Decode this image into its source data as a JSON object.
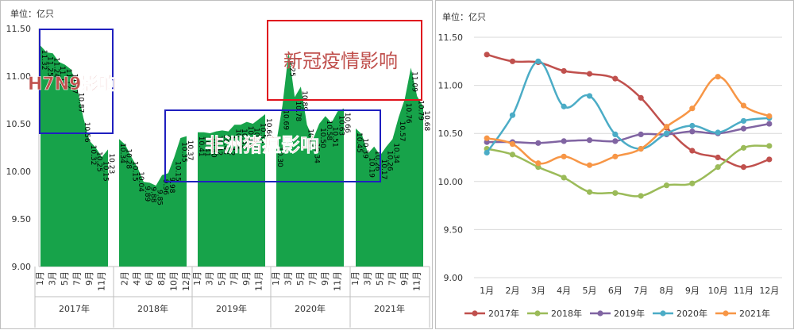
{
  "colors": {
    "area_fill": "#17a34a",
    "box_blue": "#1f1fbf",
    "box_red": "#e0141e",
    "annotation_text": "#c0504d",
    "grid": "#d9d9d9",
    "series_2017": "#c0504d",
    "series_2018": "#9bbb59",
    "series_2019": "#8064a2",
    "series_2020": "#4bacc6",
    "series_2021": "#f79646"
  },
  "chart_data": [
    {
      "type": "area",
      "unit": "单位：亿只",
      "ylim": [
        9.0,
        11.5
      ],
      "yticks": [
        "9.00",
        "9.50",
        "10.00",
        "10.50",
        "11.00",
        "11.50"
      ],
      "month_tick_labels": [
        "1月",
        "3月",
        "5月",
        "7月",
        "9月",
        "11月"
      ],
      "month_tick_labels_2018": [
        "2月",
        "4月",
        "6月",
        "8月",
        "10月",
        "12月"
      ],
      "years": [
        {
          "label": "2017年",
          "values": [
            11.32,
            11.25,
            11.24,
            11.15,
            11.12,
            11.07,
            10.87,
            10.56,
            10.32,
            10.25,
            10.15,
            10.23
          ]
        },
        {
          "label": "2018年",
          "values": [
            10.34,
            10.28,
            10.15,
            10.04,
            9.89,
            9.88,
            9.85,
            9.96,
            9.98,
            10.15,
            10.35,
            10.37
          ]
        },
        {
          "label": "2019年",
          "values": [
            10.41,
            10.41,
            10.4,
            10.42,
            10.43,
            10.42,
            10.49,
            10.49,
            10.52,
            10.5,
            10.55,
            10.6
          ]
        },
        {
          "label": "2020年",
          "values": [
            10.3,
            10.69,
            11.25,
            10.78,
            10.89,
            10.49,
            10.34,
            10.5,
            10.58,
            10.51,
            10.63,
            10.66
          ]
        },
        {
          "label": "2021年",
          "values": [
            10.45,
            10.39,
            10.19,
            10.26,
            10.17,
            10.26,
            10.34,
            10.57,
            10.76,
            11.09,
            10.79,
            10.68
          ]
        }
      ],
      "data_labels": [
        [
          "11.32",
          "11.25",
          "11.24",
          "11.15",
          "11.12",
          "11.07",
          "10.87",
          "10.56",
          "10.32",
          "10.25",
          "10.15",
          "10.23"
        ],
        [
          "10.34",
          "10.28",
          "10.15",
          "10.04",
          "9.89",
          "9.88",
          "9.85",
          "9.96",
          "9.98",
          "10.15",
          "10.35",
          "10.37"
        ],
        [
          "10.41",
          "10.41",
          "10.40",
          "10.42",
          "10.43",
          "10.42",
          "10.49",
          "10.49",
          "10.52",
          "10.50",
          "10.55",
          "10.60"
        ],
        [
          "10.30",
          "10.69",
          "11.25",
          "10.78",
          "10.89",
          "10.49",
          "10.34",
          "10.50",
          "10.58",
          "10.51",
          "10.63",
          "10.66"
        ],
        [
          "10.45",
          "10.39",
          "10.19",
          "10.26",
          "10.17",
          "10.26",
          "10.34",
          "10.57",
          "10.76",
          "11.09",
          "10.79",
          "10.68"
        ]
      ],
      "annotations": [
        {
          "text": "H7N9影响"
        },
        {
          "text": "非洲猪瘟影响"
        },
        {
          "text": "新冠疫情影响"
        }
      ]
    },
    {
      "type": "line",
      "unit": "单位：亿只",
      "ylim": [
        9.0,
        11.5
      ],
      "yticks": [
        "9.00",
        "9.50",
        "10.00",
        "10.50",
        "11.00",
        "11.50"
      ],
      "categories": [
        "1月",
        "2月",
        "3月",
        "4月",
        "5月",
        "6月",
        "7月",
        "8月",
        "9月",
        "10月",
        "11月",
        "12月"
      ],
      "series": [
        {
          "name": "2017年",
          "values": [
            11.32,
            11.25,
            11.24,
            11.15,
            11.12,
            11.07,
            10.87,
            10.56,
            10.32,
            10.25,
            10.15,
            10.23
          ]
        },
        {
          "name": "2018年",
          "values": [
            10.34,
            10.28,
            10.15,
            10.04,
            9.89,
            9.88,
            9.85,
            9.96,
            9.98,
            10.15,
            10.35,
            10.37
          ]
        },
        {
          "name": "2019年",
          "values": [
            10.41,
            10.41,
            10.4,
            10.42,
            10.43,
            10.42,
            10.49,
            10.49,
            10.52,
            10.5,
            10.55,
            10.6
          ]
        },
        {
          "name": "2020年",
          "values": [
            10.3,
            10.69,
            11.25,
            10.78,
            10.89,
            10.49,
            10.34,
            10.5,
            10.58,
            10.51,
            10.63,
            10.66
          ]
        },
        {
          "name": "2021年",
          "values": [
            10.45,
            10.39,
            10.19,
            10.26,
            10.17,
            10.26,
            10.34,
            10.57,
            10.76,
            11.09,
            10.79,
            10.68
          ]
        }
      ],
      "legend": "bottom"
    }
  ]
}
